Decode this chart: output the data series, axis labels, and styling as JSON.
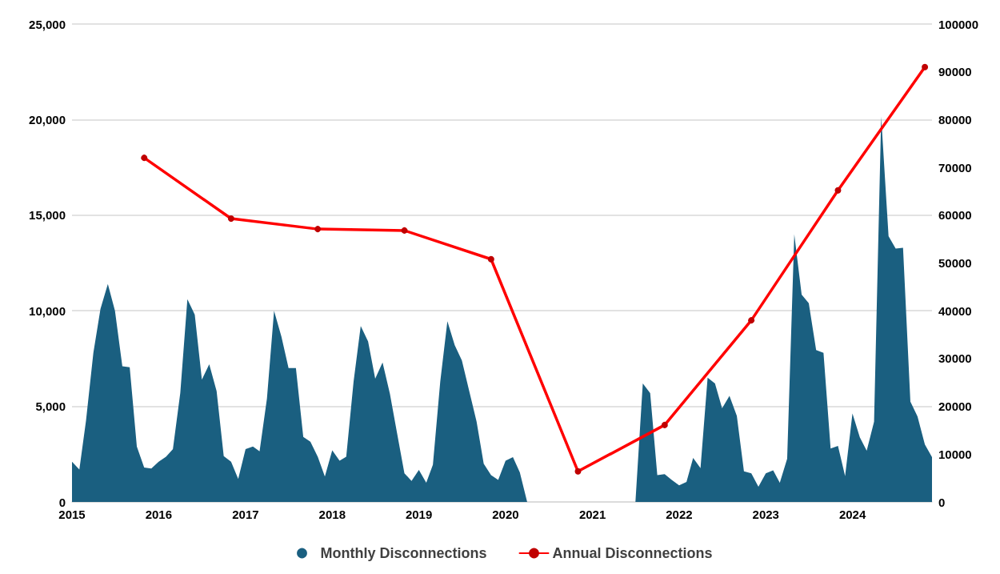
{
  "chart_data": {
    "type": "area",
    "xlim": [
      "2015-01",
      "2024-12"
    ],
    "xticks": [
      {
        "value": "2015-01",
        "label": "2015"
      },
      {
        "value": "2016-01",
        "label": "2016"
      },
      {
        "value": "2017-01",
        "label": "2017"
      },
      {
        "value": "2018-01",
        "label": "2018"
      },
      {
        "value": "2019-01",
        "label": "2019"
      },
      {
        "value": "2020-01",
        "label": "2020"
      },
      {
        "value": "2021-01",
        "label": "2021"
      },
      {
        "value": "2022-01",
        "label": "2022"
      },
      {
        "value": "2023-01",
        "label": "2023"
      },
      {
        "value": "2024-01",
        "label": "2024"
      }
    ],
    "ylim": [
      0,
      25000
    ],
    "yticks": [
      {
        "value": 0,
        "label": "0"
      },
      {
        "value": 5000,
        "label": "5,000"
      },
      {
        "value": 10000,
        "label": "10,000"
      },
      {
        "value": 15000,
        "label": "15,000"
      },
      {
        "value": 20000,
        "label": "20,000"
      },
      {
        "value": 25000,
        "label": "25,000"
      }
    ],
    "y2lim": [
      0,
      100000
    ],
    "y2ticks": [
      0,
      10000,
      20000,
      30000,
      40000,
      50000,
      60000,
      70000,
      80000,
      90000,
      100000
    ],
    "grid": "y",
    "legend": "bottom",
    "series": [
      {
        "name": "Monthly Disconnections",
        "color": "#1a5f80",
        "x": [
          "2015-01",
          "2015-02",
          "2015-03",
          "2015-04",
          "2015-05",
          "2015-06",
          "2015-07",
          "2015-08",
          "2015-09",
          "2015-10",
          "2015-11",
          "2015-12",
          "2016-01",
          "2016-02",
          "2016-03",
          "2016-04",
          "2016-05",
          "2016-06",
          "2016-07",
          "2016-08",
          "2016-09",
          "2016-10",
          "2016-11",
          "2016-12",
          "2017-01",
          "2017-02",
          "2017-03",
          "2017-04",
          "2017-05",
          "2017-06",
          "2017-07",
          "2017-08",
          "2017-09",
          "2017-10",
          "2017-11",
          "2017-12",
          "2018-01",
          "2018-02",
          "2018-03",
          "2018-04",
          "2018-05",
          "2018-06",
          "2018-07",
          "2018-08",
          "2018-09",
          "2018-10",
          "2018-11",
          "2018-12",
          "2019-01",
          "2019-02",
          "2019-03",
          "2019-04",
          "2019-05",
          "2019-06",
          "2019-07",
          "2019-08",
          "2019-09",
          "2019-10",
          "2019-11",
          "2019-12",
          "2020-01",
          "2020-02",
          "2020-03",
          "2020-04",
          "2020-05",
          "2020-06",
          "2020-07",
          "2020-08",
          "2020-09",
          "2020-10",
          "2020-11",
          "2020-12",
          "2021-01",
          "2021-02",
          "2021-03",
          "2021-04",
          "2021-05",
          "2021-06",
          "2021-07",
          "2021-08",
          "2021-09",
          "2021-10",
          "2021-11",
          "2021-12",
          "2022-01",
          "2022-02",
          "2022-03",
          "2022-04",
          "2022-05",
          "2022-06",
          "2022-07",
          "2022-08",
          "2022-09",
          "2022-10",
          "2022-11",
          "2022-12",
          "2023-01",
          "2023-02",
          "2023-03",
          "2023-04",
          "2023-05",
          "2023-06",
          "2023-07",
          "2023-08",
          "2023-09",
          "2023-10",
          "2023-11",
          "2023-12",
          "2024-01",
          "2024-02",
          "2024-03",
          "2024-04",
          "2024-05",
          "2024-06",
          "2024-07",
          "2024-08",
          "2024-09",
          "2024-10",
          "2024-11",
          "2024-12"
        ],
        "values": [
          2100,
          1700,
          4250,
          7800,
          10100,
          11400,
          10000,
          7100,
          7050,
          2900,
          1800,
          1750,
          2100,
          2370,
          2760,
          5700,
          10600,
          9800,
          6400,
          7200,
          5800,
          2400,
          2100,
          1200,
          2760,
          2900,
          2650,
          5400,
          10000,
          8650,
          7000,
          7000,
          3400,
          3150,
          2370,
          1330,
          2700,
          2160,
          2370,
          6300,
          9200,
          8400,
          6450,
          7300,
          5650,
          3600,
          1500,
          1100,
          1670,
          1000,
          1950,
          6300,
          9450,
          8200,
          7400,
          5800,
          4200,
          2000,
          1400,
          1150,
          2160,
          2350,
          1550,
          0,
          0,
          0,
          0,
          0,
          0,
          0,
          0,
          0,
          0,
          0,
          0,
          0,
          0,
          0,
          0,
          6200,
          5700,
          1400,
          1460,
          1150,
          870,
          1050,
          2300,
          1770,
          6500,
          6200,
          4900,
          5550,
          4500,
          1600,
          1500,
          800,
          1500,
          1650,
          1000,
          2260,
          14000,
          10850,
          10400,
          7950,
          7800,
          2800,
          2930,
          1350,
          4630,
          3380,
          2680,
          4200,
          20150,
          13900,
          13250,
          13300,
          5250,
          4470,
          3000,
          2350
        ]
      },
      {
        "name": "Annual Disconnections",
        "type": "line",
        "axis": "y2",
        "color": "#ff0000",
        "marker": "circle",
        "x": [
          "2015-11",
          "2016-11",
          "2017-11",
          "2018-11",
          "2019-11",
          "2020-11",
          "2021-11",
          "2022-11",
          "2023-11",
          "2024-11"
        ],
        "values": [
          72000,
          59300,
          57100,
          56800,
          50800,
          6400,
          16100,
          38000,
          65200,
          91000
        ]
      }
    ]
  }
}
